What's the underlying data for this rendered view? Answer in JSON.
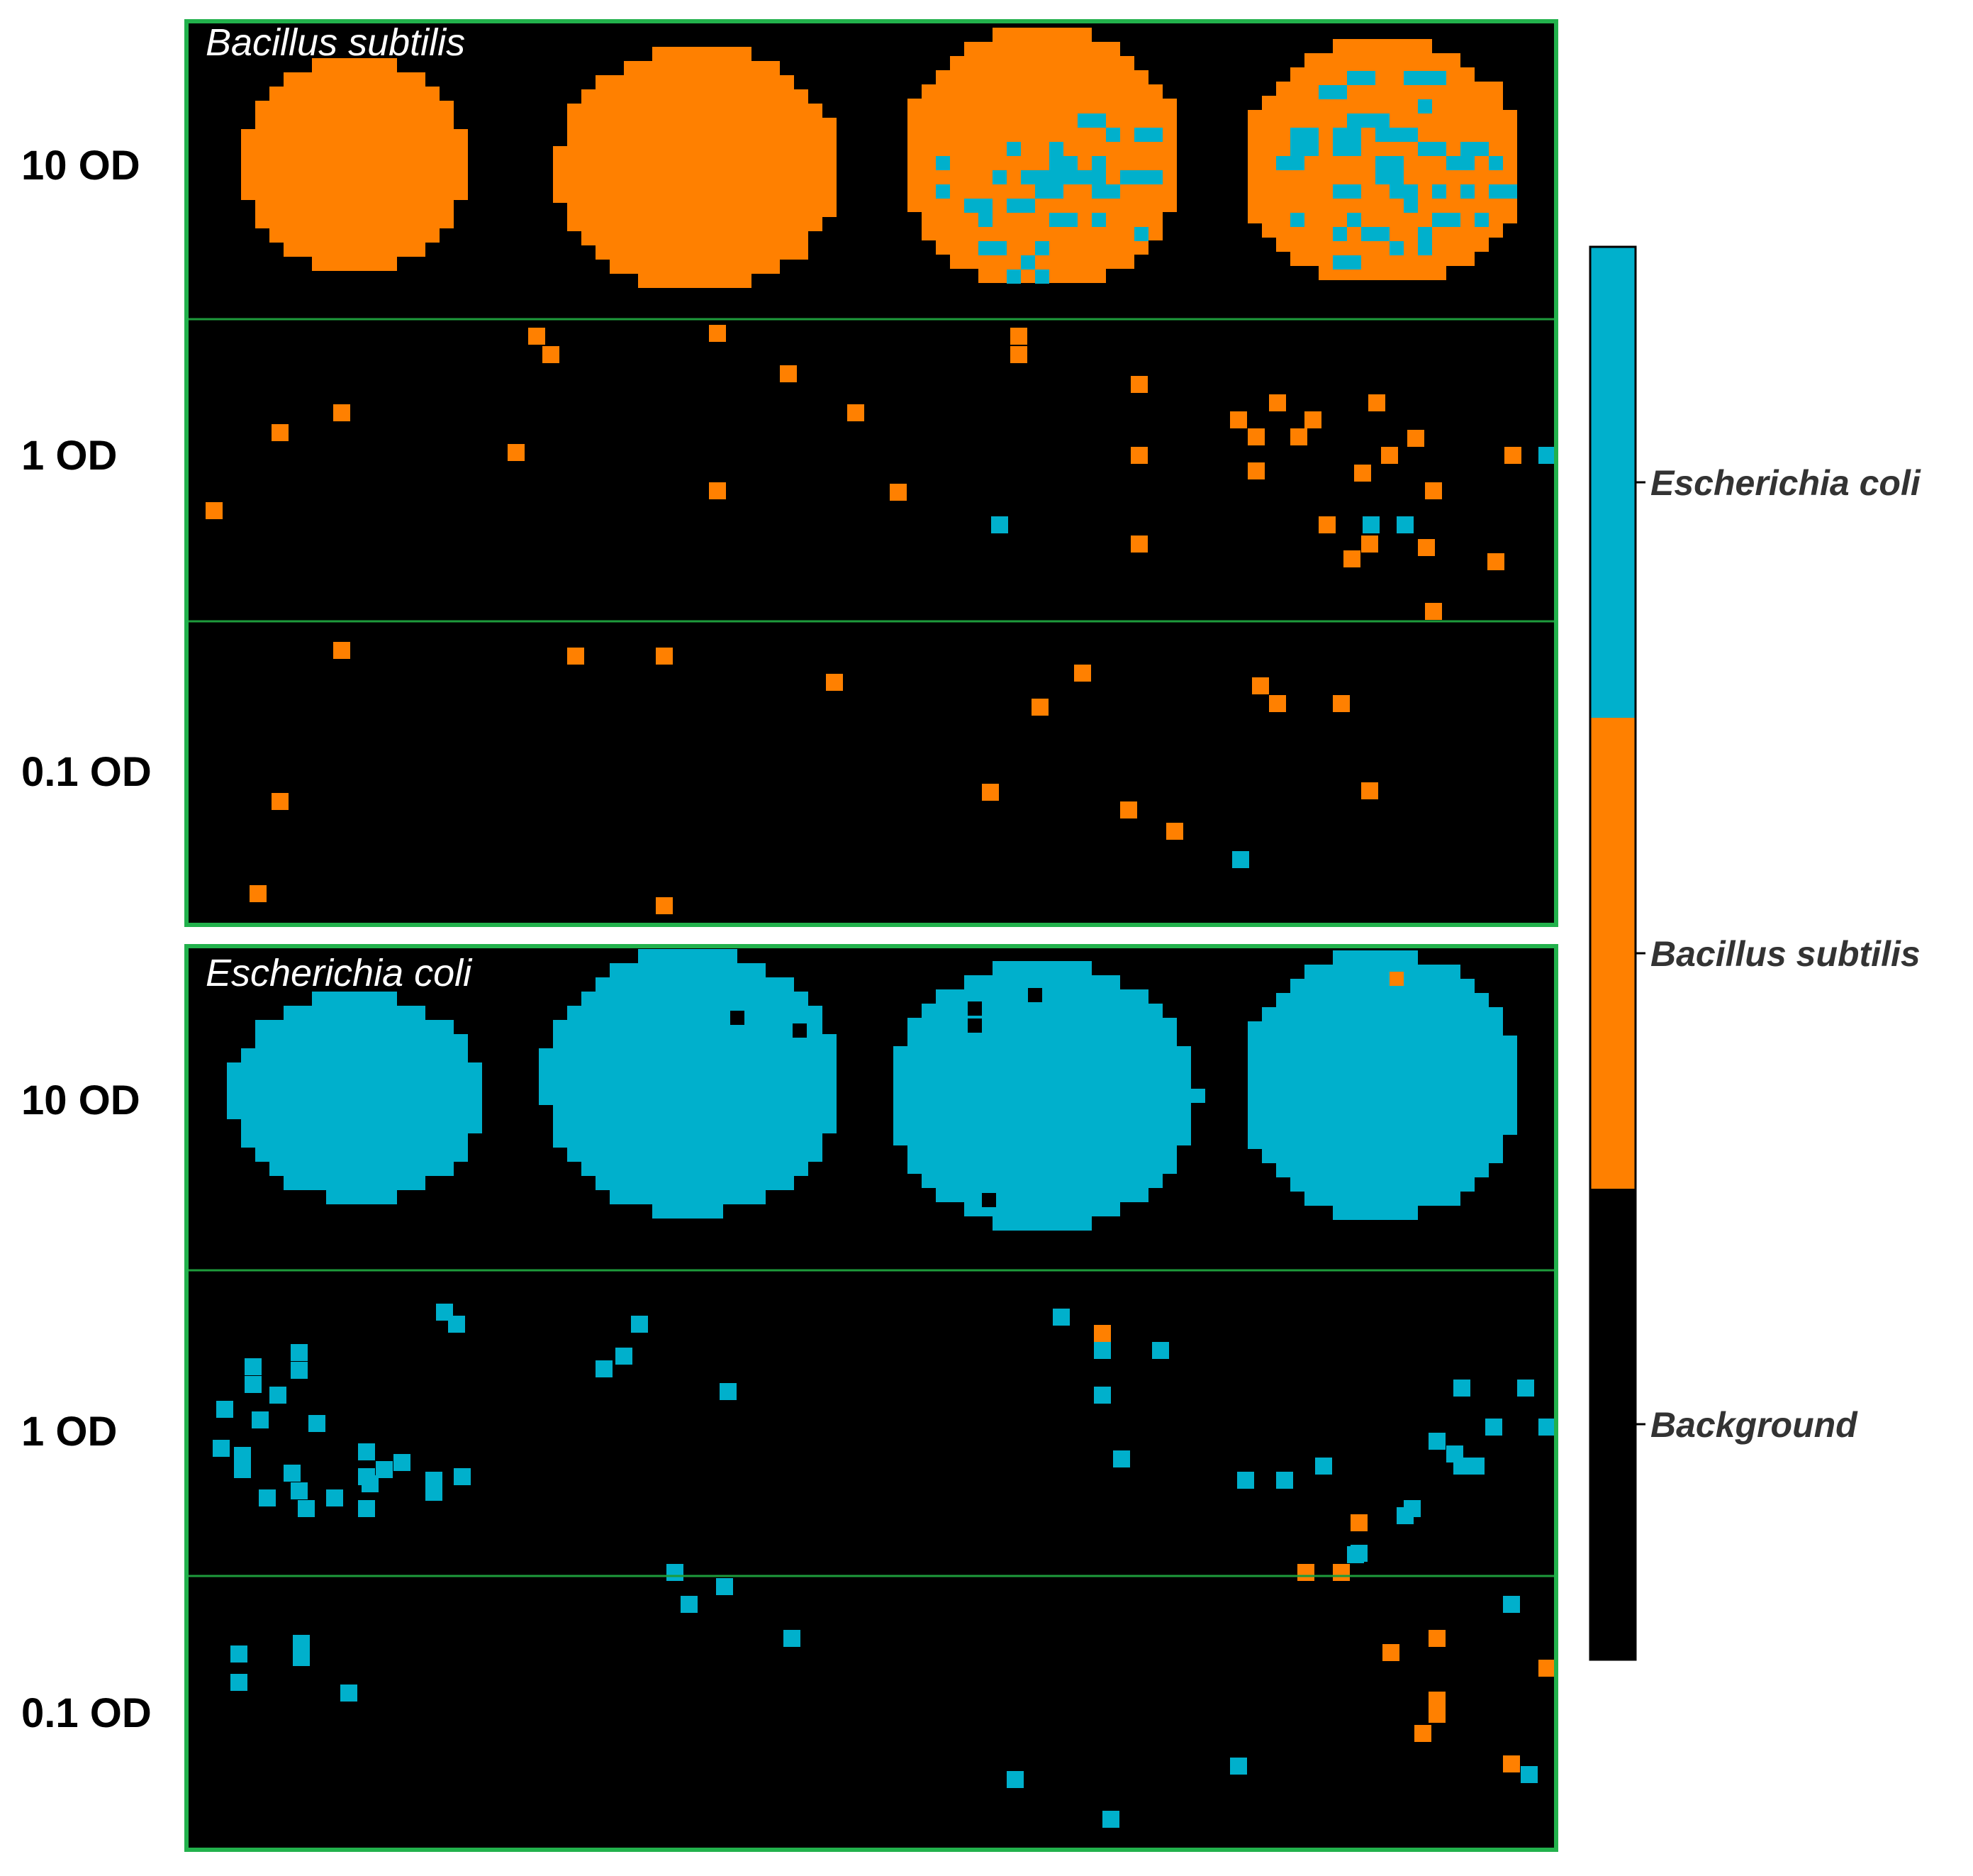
{
  "figure": {
    "panels": [
      {
        "id": "bs",
        "title": "Bacillus subtilis",
        "colony_color": "orange",
        "rows": [
          {
            "label": "10 OD"
          },
          {
            "label": "1 OD"
          },
          {
            "label": "0.1 OD"
          }
        ]
      },
      {
        "id": "ec",
        "title": "Escherichia coli",
        "colony_color": "cyan",
        "rows": [
          {
            "label": "10 OD"
          },
          {
            "label": "1 OD"
          },
          {
            "label": "0.1 OD"
          }
        ]
      }
    ],
    "legend": {
      "items": [
        {
          "label": "Escherichia coli",
          "color": "#00B0CC"
        },
        {
          "label": "Bacillus subtilis",
          "color": "#FF8000"
        },
        {
          "label": "Background",
          "color": "#000000"
        }
      ]
    },
    "colors": {
      "frame": "#22B14C",
      "divider": "#1E9B3C",
      "background": "#000000",
      "orange": "#FF8000",
      "cyan": "#00B0CC"
    }
  }
}
